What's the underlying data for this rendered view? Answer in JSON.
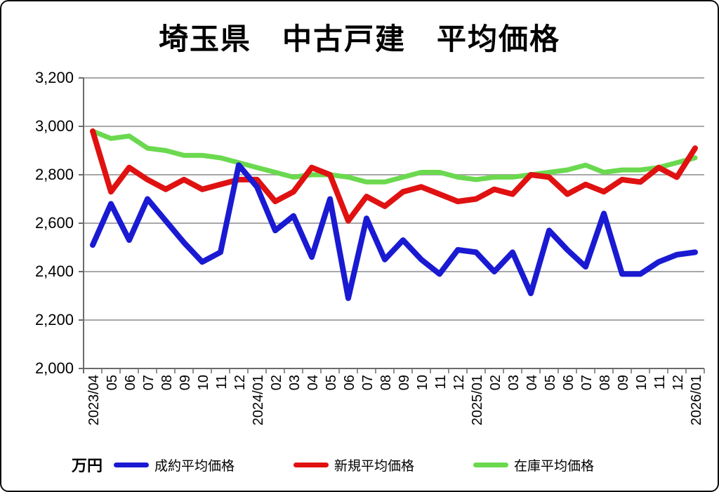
{
  "page": {
    "title": "埼玉県　中古戸建　平均価格",
    "unit_label": "万円"
  },
  "chart_data": {
    "type": "line",
    "title": "埼玉県　中古戸建　平均価格",
    "unit": "万円",
    "ylim": [
      2000,
      3200
    ],
    "grid": true,
    "legend_position": "bottom",
    "y_ticks": [
      {
        "value": 3200,
        "label": "3,200"
      },
      {
        "value": 3000,
        "label": "3,000"
      },
      {
        "value": 2800,
        "label": "2,800"
      },
      {
        "value": 2600,
        "label": "2,600"
      },
      {
        "value": 2400,
        "label": "2,400"
      },
      {
        "value": 2200,
        "label": "2,200"
      },
      {
        "value": 2000,
        "label": "2,000"
      }
    ],
    "x_labels": [
      "2023/04",
      "05",
      "06",
      "07",
      "08",
      "09",
      "10",
      "11",
      "12",
      "2024/01",
      "02",
      "03",
      "04",
      "05",
      "06",
      "07",
      "08",
      "09",
      "10",
      "11",
      "12",
      "2025/01",
      "02",
      "03",
      "04",
      "05",
      "06",
      "07",
      "08",
      "09",
      "10",
      "11",
      "12",
      "2026/01"
    ],
    "series": [
      {
        "name": "成約平均価格",
        "color": "#1a1ad2",
        "values": [
          2510,
          2680,
          2530,
          2700,
          2610,
          2520,
          2440,
          2480,
          2840,
          2750,
          2570,
          2630,
          2460,
          2700,
          2290,
          2620,
          2450,
          2530,
          2450,
          2390,
          2490,
          2480,
          2400,
          2480,
          2310,
          2570,
          2490,
          2420,
          2640,
          2390,
          2390,
          2440,
          2470,
          2480
        ]
      },
      {
        "name": "新規平均価格",
        "color": "#e01111",
        "values": [
          2980,
          2730,
          2830,
          2780,
          2740,
          2780,
          2740,
          2760,
          2780,
          2780,
          2690,
          2730,
          2830,
          2800,
          2610,
          2710,
          2670,
          2730,
          2750,
          2720,
          2690,
          2700,
          2740,
          2720,
          2800,
          2790,
          2720,
          2760,
          2730,
          2780,
          2770,
          2830,
          2790,
          2910
        ]
      },
      {
        "name": "在庫平均価格",
        "color": "#6bd94f",
        "values": [
          2980,
          2950,
          2960,
          2910,
          2900,
          2880,
          2880,
          2870,
          2850,
          2830,
          2810,
          2790,
          2800,
          2800,
          2790,
          2770,
          2770,
          2790,
          2810,
          2810,
          2790,
          2780,
          2790,
          2790,
          2800,
          2810,
          2820,
          2840,
          2810,
          2820,
          2820,
          2830,
          2850,
          2870
        ]
      }
    ]
  }
}
